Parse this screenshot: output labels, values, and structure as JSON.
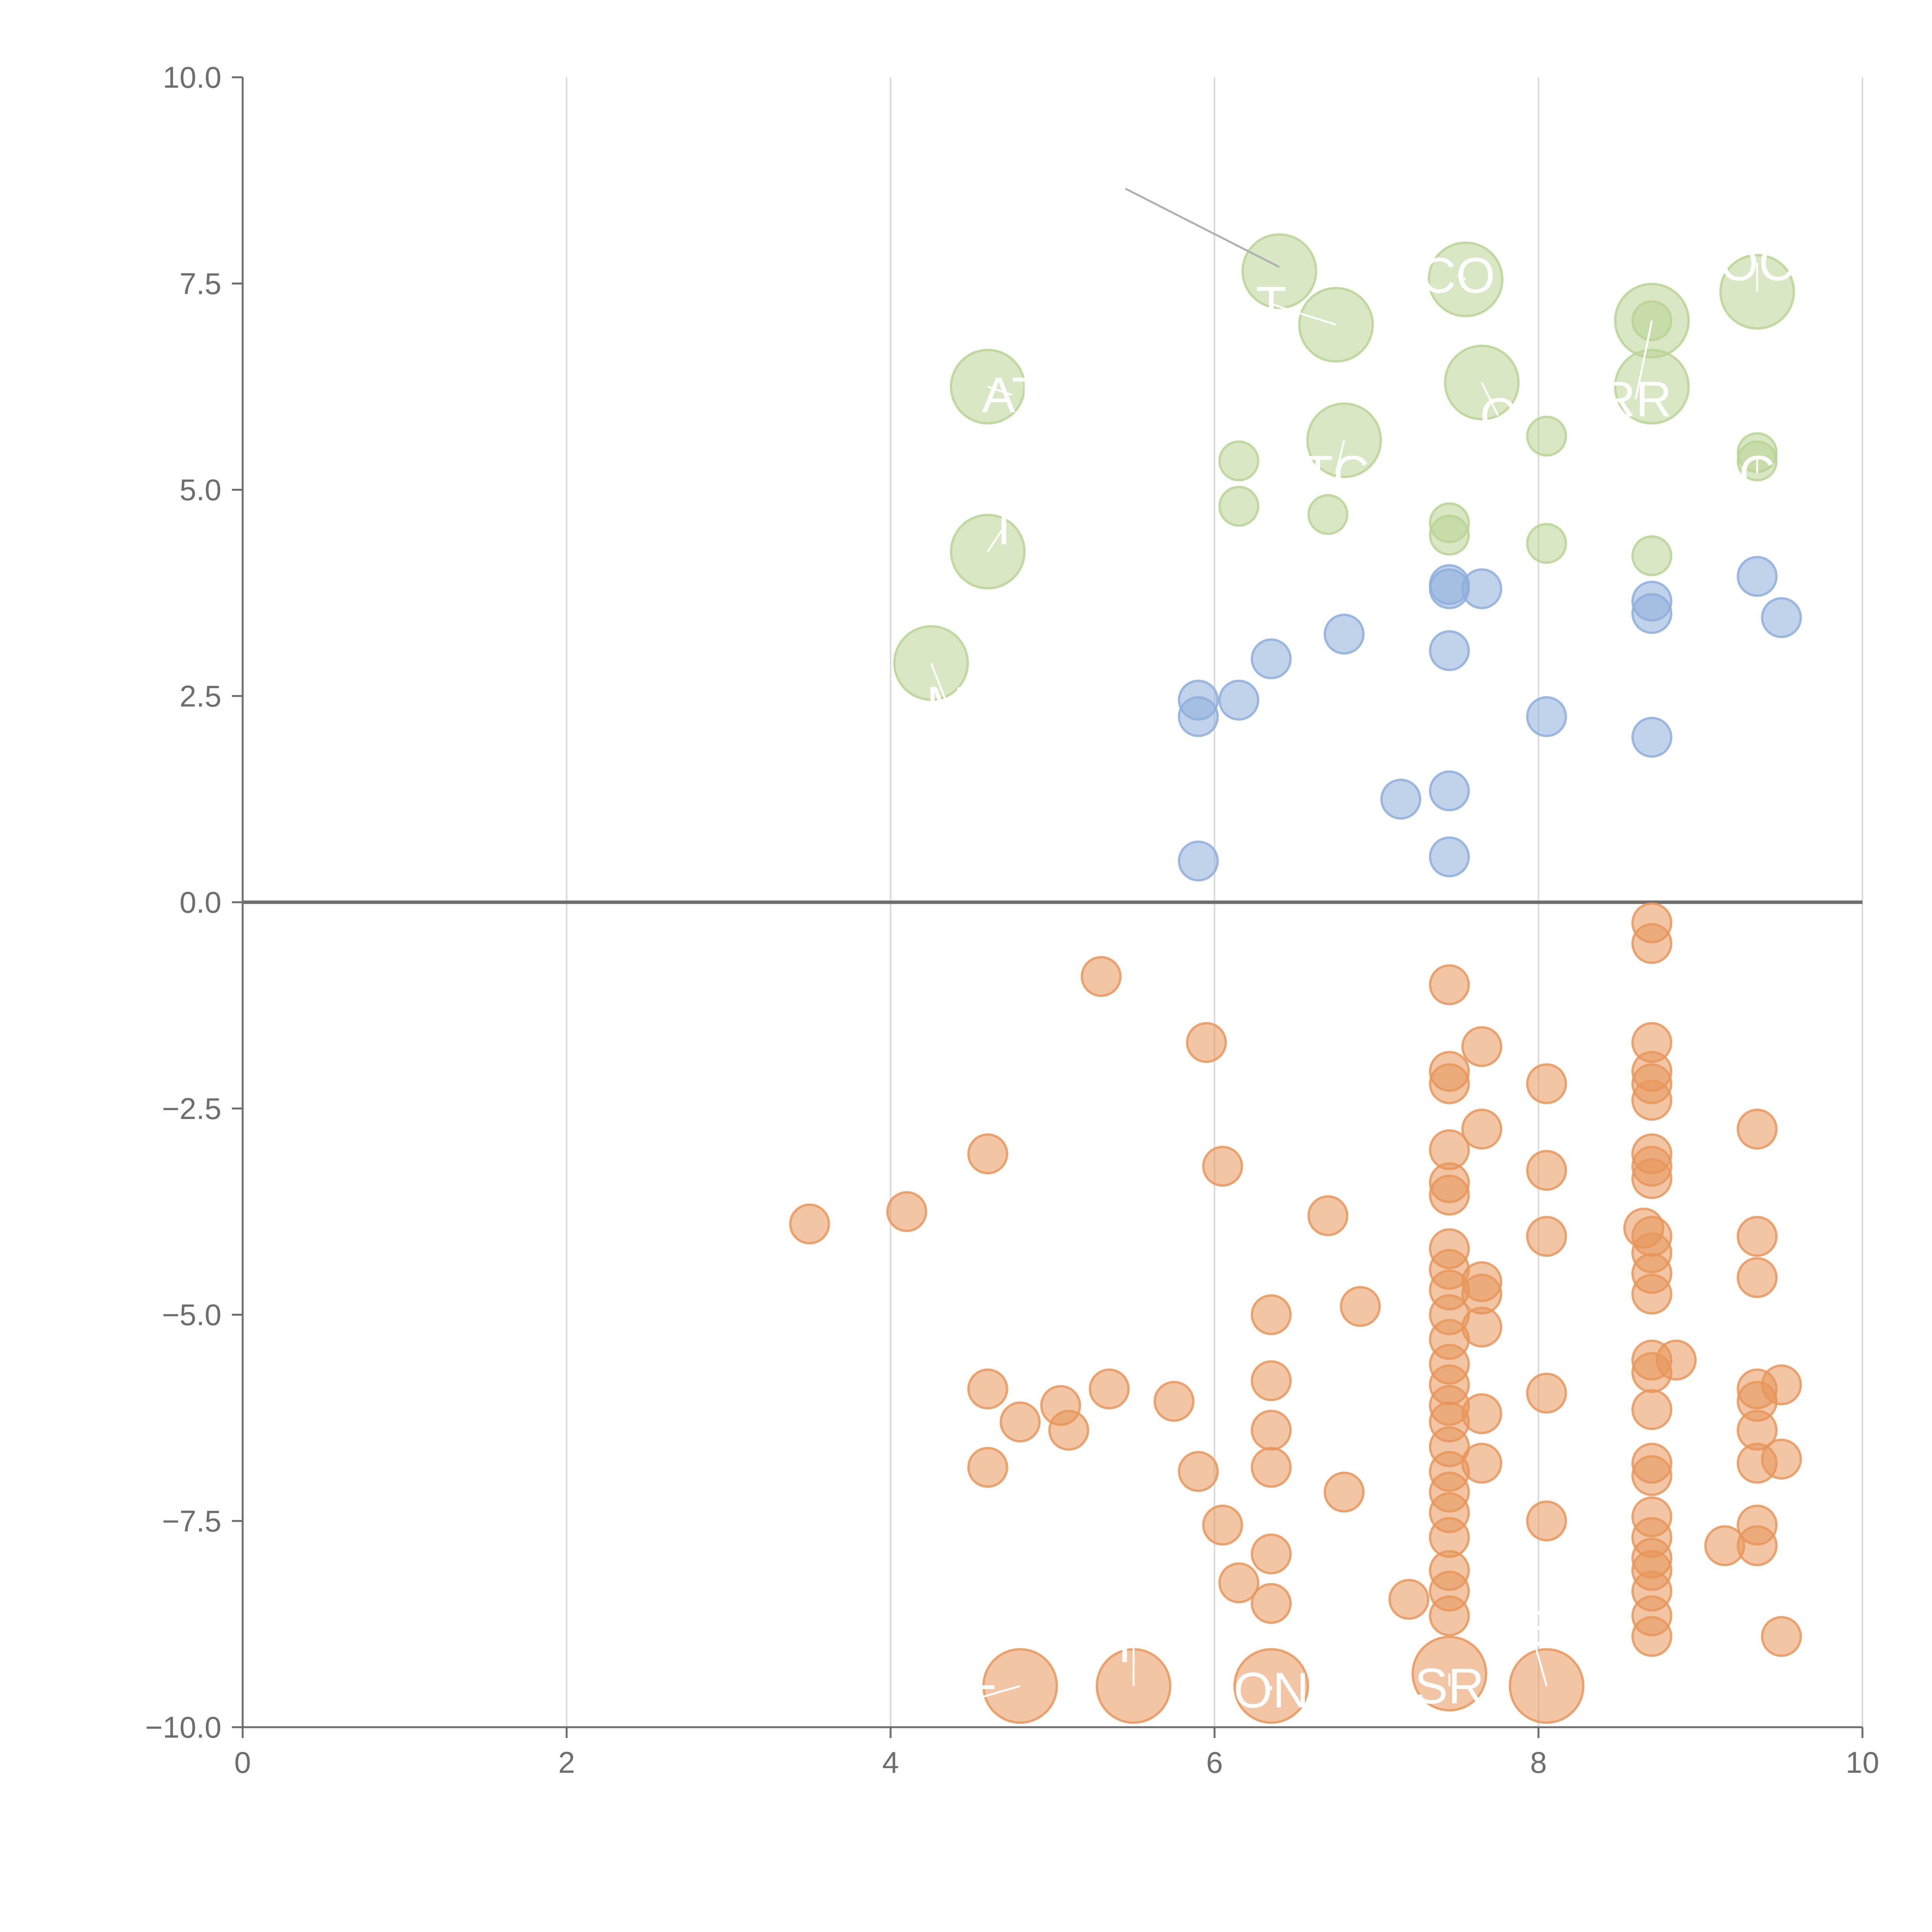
{
  "colors": {
    "negative": "#e8965a",
    "low": "#8eaedb",
    "high": "#b9d494",
    "axis": "#6e6e6e",
    "grid": "#d9d9d9",
    "label": "#ffffff"
  },
  "chart_data": {
    "type": "scatter",
    "title": "",
    "xlabel": "",
    "ylabel": "",
    "xlim": [
      0,
      10
    ],
    "ylim": [
      -10,
      10
    ],
    "grid": "vertical",
    "x_ticks": [
      0,
      2,
      4,
      6,
      8,
      10
    ],
    "x_tick_labels": [
      "0",
      "2",
      "4",
      "6",
      "8",
      "10"
    ],
    "y_ticks": [
      10,
      7.5,
      5,
      2.5,
      0,
      -2.5,
      -5,
      -7.5,
      -10
    ],
    "y_tick_labels": [
      "10.0",
      "7.5",
      "5.0",
      "2.5",
      "0.0",
      "−2.5",
      "−5.0",
      "−7.5",
      "−10.0"
    ],
    "series": [
      {
        "name": "negative",
        "color_key": "negative",
        "points": [
          [
            3.5,
            -3.9
          ],
          [
            4.1,
            -3.75
          ],
          [
            4.6,
            -3.05
          ],
          [
            5.3,
            -0.9
          ],
          [
            5.95,
            -1.7
          ],
          [
            6.05,
            -3.2
          ],
          [
            6.7,
            -3.8
          ],
          [
            4.6,
            -5.9
          ],
          [
            4.6,
            -6.85
          ],
          [
            4.8,
            -6.3
          ],
          [
            5.05,
            -6.1
          ],
          [
            5.1,
            -6.4
          ],
          [
            5.35,
            -5.9
          ],
          [
            5.75,
            -6.05
          ],
          [
            5.9,
            -6.9
          ],
          [
            6.05,
            -7.55
          ],
          [
            6.15,
            -8.25
          ],
          [
            6.35,
            -5.0
          ],
          [
            6.35,
            -5.8
          ],
          [
            6.35,
            -6.4
          ],
          [
            6.35,
            -6.85
          ],
          [
            6.35,
            -7.9
          ],
          [
            6.35,
            -8.5
          ],
          [
            6.8,
            -7.15
          ],
          [
            6.9,
            -4.9
          ],
          [
            7.2,
            -8.45
          ],
          [
            7.45,
            -1.0
          ],
          [
            7.45,
            -2.05
          ],
          [
            7.45,
            -2.2
          ],
          [
            7.45,
            -3.0
          ],
          [
            7.45,
            -3.4
          ],
          [
            7.45,
            -3.55
          ],
          [
            7.45,
            -4.2
          ],
          [
            7.45,
            -4.45
          ],
          [
            7.45,
            -4.7
          ],
          [
            7.45,
            -5.0
          ],
          [
            7.45,
            -5.3
          ],
          [
            7.45,
            -5.6
          ],
          [
            7.45,
            -5.85
          ],
          [
            7.45,
            -6.1
          ],
          [
            7.45,
            -6.3
          ],
          [
            7.45,
            -6.6
          ],
          [
            7.45,
            -6.9
          ],
          [
            7.45,
            -7.15
          ],
          [
            7.45,
            -7.4
          ],
          [
            7.45,
            -7.7
          ],
          [
            7.45,
            -8.1
          ],
          [
            7.45,
            -8.35
          ],
          [
            7.45,
            -8.65
          ],
          [
            7.65,
            -1.75
          ],
          [
            7.65,
            -2.75
          ],
          [
            7.65,
            -4.6
          ],
          [
            7.65,
            -4.75
          ],
          [
            7.65,
            -5.15
          ],
          [
            7.65,
            -6.2
          ],
          [
            7.65,
            -6.8
          ],
          [
            8.05,
            -2.2
          ],
          [
            8.05,
            -3.25
          ],
          [
            8.05,
            -4.05
          ],
          [
            8.05,
            -5.95
          ],
          [
            8.05,
            -7.5
          ],
          [
            8.7,
            -0.25
          ],
          [
            8.7,
            -0.5
          ],
          [
            8.7,
            -1.7
          ],
          [
            8.7,
            -2.05
          ],
          [
            8.7,
            -2.2
          ],
          [
            8.7,
            -2.4
          ],
          [
            8.7,
            -3.05
          ],
          [
            8.7,
            -3.2
          ],
          [
            8.7,
            -3.35
          ],
          [
            8.65,
            -3.95
          ],
          [
            8.7,
            -4.05
          ],
          [
            8.7,
            -4.25
          ],
          [
            8.7,
            -4.5
          ],
          [
            8.7,
            -4.75
          ],
          [
            8.7,
            -5.55
          ],
          [
            8.7,
            -5.7
          ],
          [
            8.7,
            -6.15
          ],
          [
            8.7,
            -6.8
          ],
          [
            8.7,
            -6.95
          ],
          [
            8.7,
            -7.45
          ],
          [
            8.7,
            -7.7
          ],
          [
            8.7,
            -7.95
          ],
          [
            8.7,
            -8.1
          ],
          [
            8.7,
            -8.35
          ],
          [
            8.7,
            -8.65
          ],
          [
            8.7,
            -8.9
          ],
          [
            8.85,
            -5.55
          ],
          [
            9.15,
            -7.8
          ],
          [
            9.35,
            -2.75
          ],
          [
            9.35,
            -4.05
          ],
          [
            9.35,
            -4.55
          ],
          [
            9.35,
            -5.9
          ],
          [
            9.35,
            -6.05
          ],
          [
            9.35,
            -6.4
          ],
          [
            9.35,
            -6.8
          ],
          [
            9.35,
            -7.55
          ],
          [
            9.35,
            -7.8
          ],
          [
            9.5,
            -5.85
          ],
          [
            9.5,
            -6.75
          ],
          [
            9.5,
            -8.9
          ]
        ]
      },
      {
        "name": "low",
        "color_key": "low",
        "points": [
          [
            5.9,
            0.5
          ],
          [
            5.9,
            2.25
          ],
          [
            5.9,
            2.45
          ],
          [
            6.15,
            2.45
          ],
          [
            6.35,
            2.95
          ],
          [
            6.8,
            3.25
          ],
          [
            7.15,
            1.25
          ],
          [
            7.45,
            0.55
          ],
          [
            7.45,
            1.35
          ],
          [
            7.45,
            3.05
          ],
          [
            7.45,
            3.8
          ],
          [
            7.45,
            3.85
          ],
          [
            7.65,
            3.8
          ],
          [
            8.05,
            2.25
          ],
          [
            8.7,
            2.0
          ],
          [
            8.7,
            3.5
          ],
          [
            8.7,
            3.65
          ],
          [
            9.35,
            3.95
          ],
          [
            9.5,
            3.45
          ]
        ]
      },
      {
        "name": "high",
        "color_key": "high",
        "points": [
          [
            6.15,
            5.35
          ],
          [
            6.15,
            4.8
          ],
          [
            6.7,
            4.7
          ],
          [
            7.45,
            4.6
          ],
          [
            7.45,
            4.45
          ],
          [
            8.05,
            5.65
          ],
          [
            8.05,
            4.35
          ],
          [
            8.7,
            4.2
          ],
          [
            8.7,
            7.05
          ],
          [
            9.35,
            5.45
          ],
          [
            9.35,
            5.35
          ]
        ]
      }
    ],
    "large_bubbles": [
      {
        "x": 6.4,
        "y": 7.65,
        "series": "high"
      },
      {
        "x": 6.75,
        "y": 7.0,
        "series": "high"
      },
      {
        "x": 7.55,
        "y": 7.55,
        "series": "high"
      },
      {
        "x": 9.35,
        "y": 7.4,
        "series": "high"
      },
      {
        "x": 8.7,
        "y": 7.05,
        "series": "high"
      },
      {
        "x": 4.6,
        "y": 6.25,
        "series": "high"
      },
      {
        "x": 7.65,
        "y": 6.3,
        "series": "high"
      },
      {
        "x": 8.7,
        "y": 6.25,
        "series": "high"
      },
      {
        "x": 6.8,
        "y": 5.6,
        "series": "high"
      },
      {
        "x": 4.6,
        "y": 4.25,
        "series": "high"
      },
      {
        "x": 4.25,
        "y": 2.9,
        "series": "high"
      },
      {
        "x": 4.8,
        "y": -9.5,
        "series": "negative"
      },
      {
        "x": 5.5,
        "y": -9.5,
        "series": "negative"
      },
      {
        "x": 6.35,
        "y": -9.5,
        "series": "negative"
      },
      {
        "x": 7.45,
        "y": -9.35,
        "series": "negative"
      },
      {
        "x": 8.05,
        "y": -9.5,
        "series": "negative"
      }
    ],
    "annotations": [
      {
        "text": "CO",
        "x": 7.5,
        "y": 7.6,
        "lx": 7.55,
        "ly": 7.55
      },
      {
        "text": "T",
        "x": 6.35,
        "y": 7.25,
        "lx": 6.75,
        "ly": 7.0
      },
      {
        "text": "OC",
        "x": 9.35,
        "y": 7.75,
        "lx": 9.35,
        "ly": 7.4
      },
      {
        "text": "AT",
        "x": 4.75,
        "y": 6.15,
        "lx": 4.6,
        "ly": 6.25
      },
      {
        "text": "RR",
        "x": 8.6,
        "y": 6.1,
        "lx": 8.7,
        "ly": 7.05
      },
      {
        "text": "C",
        "x": 7.75,
        "y": 5.9,
        "lx": 7.65,
        "ly": 6.3
      },
      {
        "text": "TC",
        "x": 6.75,
        "y": 5.2,
        "lx": 6.8,
        "ly": 5.6
      },
      {
        "text": "C",
        "x": 9.35,
        "y": 5.2,
        "lx": 9.35,
        "ly": 5.4
      },
      {
        "text": "T",
        "x": 4.7,
        "y": 4.55,
        "lx": 4.6,
        "ly": 4.25
      },
      {
        "text": "M",
        "x": 4.35,
        "y": 2.4,
        "lx": 4.25,
        "ly": 2.9
      },
      {
        "text": "ET",
        "x": 4.45,
        "y": -9.7,
        "lx": 4.8,
        "ly": -9.5
      },
      {
        "text": "ON",
        "x": 6.35,
        "y": -9.55,
        "lx": 6.35,
        "ly": -9.5
      },
      {
        "text": "SR",
        "x": 7.45,
        "y": -9.5,
        "lx": 7.45,
        "ly": -9.35
      },
      {
        "text": "E",
        "x": 7.95,
        "y": -8.8,
        "lx": 8.05,
        "ly": -9.5
      },
      {
        "text": "F",
        "x": 5.5,
        "y": -9.0,
        "lx": 5.5,
        "ly": -9.5
      }
    ],
    "callout_line": {
      "x1": 5.45,
      "y1": 8.65,
      "x2": 6.4,
      "y2": 7.7
    }
  }
}
